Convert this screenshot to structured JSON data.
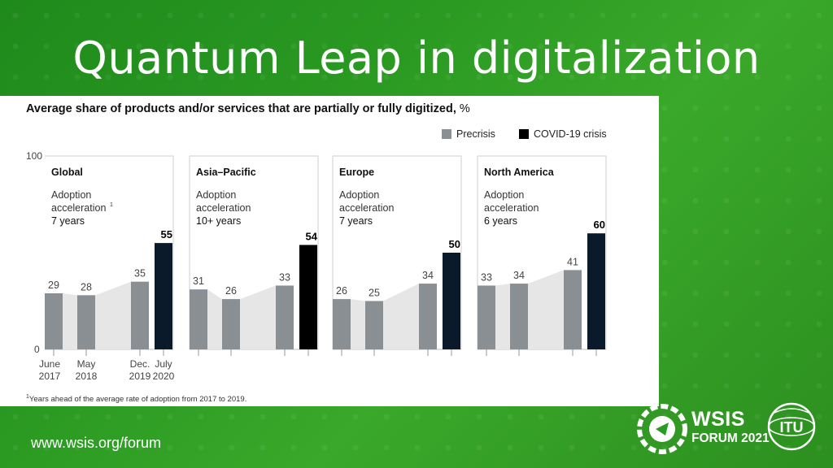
{
  "slide": {
    "title": "Quantum Leap in digitalization",
    "url": "www.wsis.org/forum"
  },
  "branding": {
    "wsis_line1": "WSIS",
    "wsis_line2": "FORUM 2021",
    "itu": "ITU"
  },
  "chart_data": {
    "type": "bar",
    "title": "Average share of products and/or services that are partially or fully digitized,",
    "unit": "%",
    "legend": [
      {
        "label": "Precrisis",
        "color": "#8a8f94"
      },
      {
        "label": "COVID-19 crisis",
        "color": "#0b1a2a"
      }
    ],
    "ylim": [
      0,
      100
    ],
    "ytick_labels": [
      "100",
      "0"
    ],
    "categories": [
      "June 2017",
      "May 2018",
      "Dec. 2019",
      "July 2020"
    ],
    "category_labels_line1": [
      "June",
      "May",
      "Dec.",
      "July"
    ],
    "category_labels_line2": [
      "2017",
      "2018",
      "2019",
      "2020"
    ],
    "footnote_marker": "1",
    "footnote": "Years ahead of the average rate of adoption from 2017 to 2019.",
    "panels": [
      {
        "region": "Global",
        "note_line1": "Adoption",
        "note_line2": "acceleration",
        "note_marker": "1",
        "note_line3": "7 years",
        "values": [
          29,
          28,
          35,
          55
        ],
        "colors": [
          "#8a8f94",
          "#8a8f94",
          "#8a8f94",
          "#0b1a2a"
        ]
      },
      {
        "region": "Asia–Pacific",
        "note_line1": "Adoption",
        "note_line2": "acceleration",
        "note_marker": "",
        "note_line3": "10+ years",
        "values": [
          31,
          26,
          33,
          54
        ],
        "colors": [
          "#8a8f94",
          "#8a8f94",
          "#8a8f94",
          "#000000"
        ]
      },
      {
        "region": "Europe",
        "note_line1": "Adoption",
        "note_line2": "acceleration",
        "note_marker": "",
        "note_line3": "7 years",
        "values": [
          26,
          25,
          34,
          50
        ],
        "colors": [
          "#8a8f94",
          "#8a8f94",
          "#8a8f94",
          "#0b1a2a"
        ]
      },
      {
        "region": "North America",
        "note_line1": "Adoption",
        "note_line2": "acceleration",
        "note_marker": "",
        "note_line3": "6 years",
        "values": [
          33,
          34,
          41,
          60
        ],
        "colors": [
          "#8a8f94",
          "#8a8f94",
          "#8a8f94",
          "#0b1a2a"
        ]
      }
    ]
  }
}
